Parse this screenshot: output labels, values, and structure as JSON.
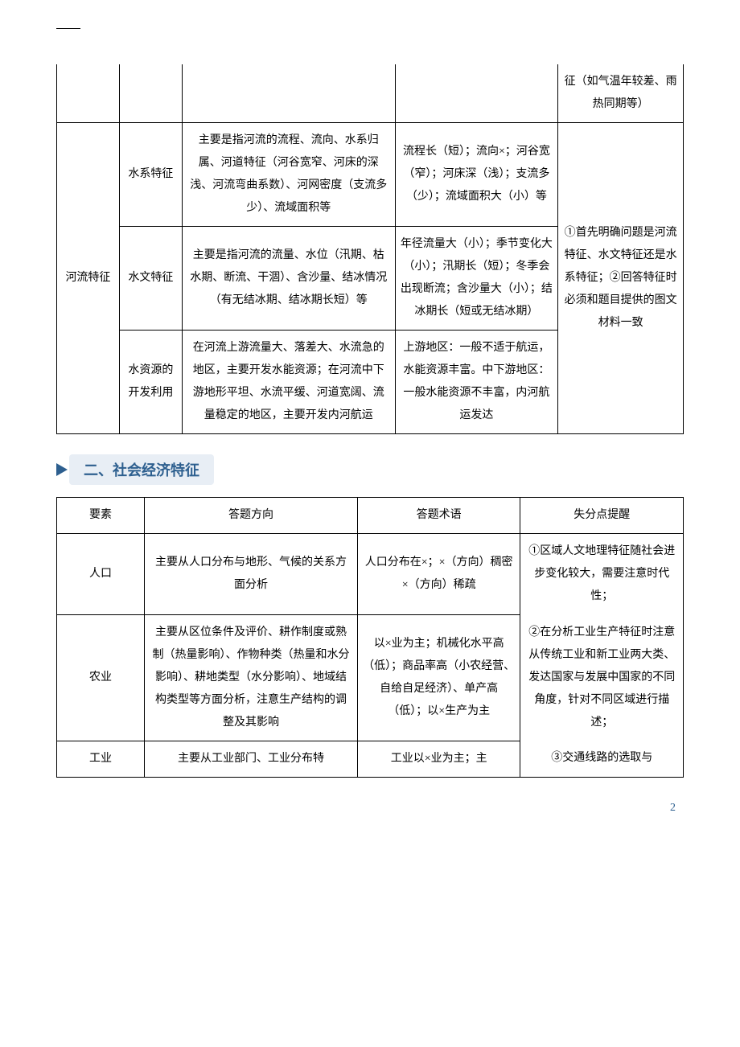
{
  "table1": {
    "row0_c5": "征（如气温年较差、雨热同期等）",
    "river_label": "河流特征",
    "r1_c2": "水系特征",
    "r1_c3": "主要是指河流的流程、流向、水系归属、河道特征（河谷宽窄、河床的深浅、河流弯曲系数）、河网密度（支流多少）、流域面积等",
    "r1_c4": "流程长（短）；流向×；河谷宽（窄）；河床深（浅）；支流多（少）；流域面积大（小）等",
    "r2_c2": "水文特征",
    "r2_c3": "主要是指河流的流量、水位（汛期、枯水期、断流、干涸）、含沙量、结冰情况（有无结冰期、结冰期长短）等",
    "r2_c4": "年径流量大（小）；季节变化大（小）；汛期长（短）；冬季会出现断流；含沙量大（小）；结冰期长（短或无结冰期）",
    "r3_c2": "水资源的开发利用",
    "r3_c3": "在河流上游流量大、落差大、水流急的地区，主要开发水能资源；在河流中下游地形平坦、水流平缓、河道宽阔、流量稳定的地区，主要开发内河航运",
    "r3_c4": "上游地区：一般不适于航运，水能资源丰富。中下游地区：一般水能资源不丰富，内河航运发达",
    "r123_c5": "①首先明确问题是河流特征、水文特征还是水系特征；②回答特征时必须和题目提供的图文材料一致"
  },
  "section2_title": "二、社会经济特征",
  "table2": {
    "h1": "要素",
    "h2": "答题方向",
    "h3": "答题术语",
    "h4": "失分点提醒",
    "r1_c1": "人口",
    "r1_c2": "主要从人口分布与地形、气候的关系方面分析",
    "r1_c3": "人口分布在×；×（方向）稠密×（方向）稀疏",
    "r1_c4": "①区域人文地理特征随社会进步变化较大，需要注意时代性；",
    "r2_c1": "农业",
    "r2_c2": "主要从区位条件及评价、耕作制度或熟制（热量影响）、作物种类（热量和水分影响）、耕地类型（水分影响）、地域结构类型等方面分析，注意生产结构的调整及其影响",
    "r2_c3": "以×业为主；机械化水平高（低）；商品率高（小农经营、自给自足经济）、单产高（低）；以×生产为主",
    "r2_c4": "②在分析工业生产特征时注意从传统工业和新工业两大类、发达国家与发展中国家的不同角度，针对不同区域进行描述；",
    "r3_c1": "工业",
    "r3_c2": "主要从工业部门、工业分布特",
    "r3_c3": "工业以×业为主；主",
    "r3_c4": "③交通线路的选取与"
  },
  "page_number": "2"
}
